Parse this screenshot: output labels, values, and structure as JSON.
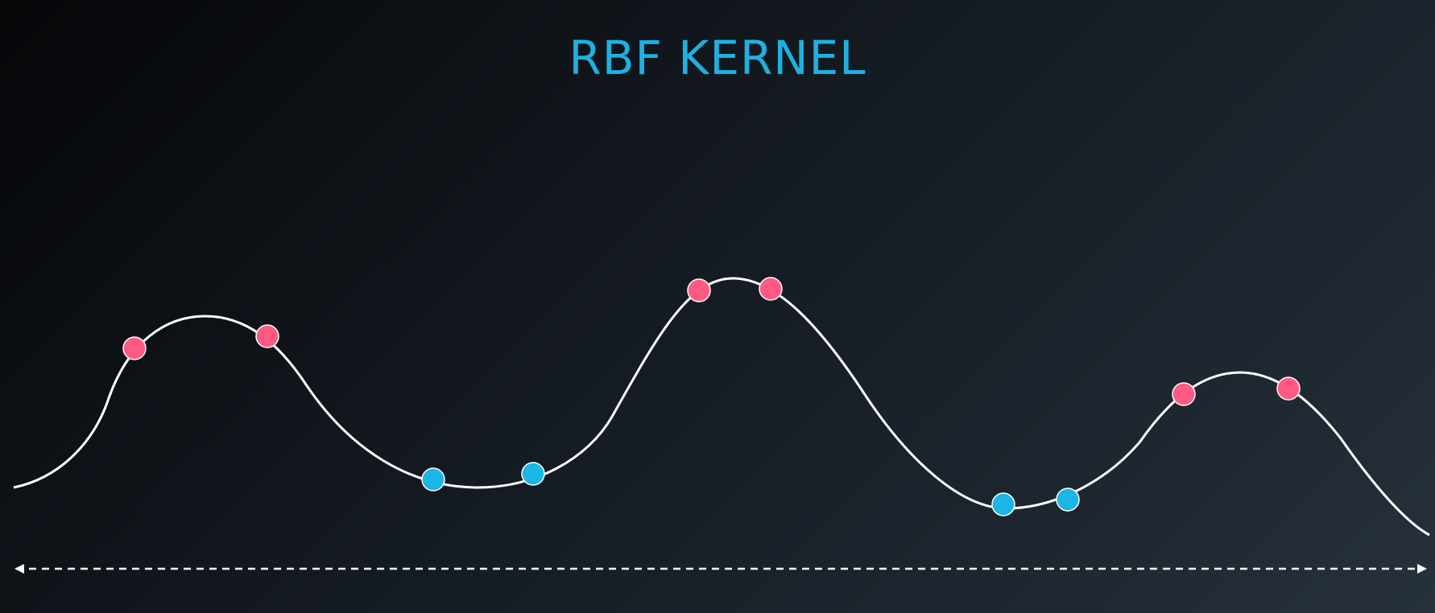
{
  "title": "RBF KERNEL",
  "colors": {
    "title": "#1fb0e0",
    "curve": "#ffffff",
    "axis": "#ffffff",
    "positive_point": "#ff5a84",
    "negative_point": "#1bb6e6"
  },
  "diagram": {
    "description_type": "one-dimensional classification with RBF-shaped decision curve",
    "point_classes": [
      "positive",
      "negative"
    ],
    "points": [
      {
        "class": "positive"
      },
      {
        "class": "positive"
      },
      {
        "class": "negative"
      },
      {
        "class": "negative"
      },
      {
        "class": "positive"
      },
      {
        "class": "positive"
      },
      {
        "class": "negative"
      },
      {
        "class": "negative"
      },
      {
        "class": "positive"
      },
      {
        "class": "positive"
      }
    ],
    "axis": {
      "style": "dashed",
      "arrows": "both"
    },
    "curve": {
      "style": "smooth",
      "peaks": 3,
      "valleys": 2
    }
  }
}
